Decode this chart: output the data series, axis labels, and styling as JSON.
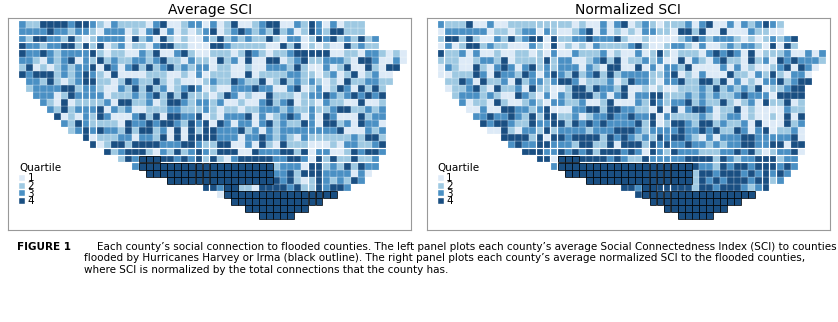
{
  "title_left": "Average SCI",
  "title_right": "Normalized SCI",
  "legend_title": "Quartile",
  "legend_labels": [
    "1",
    "2",
    "3",
    "4"
  ],
  "quartile_colors": [
    "#ddeaf7",
    "#9ec9e2",
    "#4a90c4",
    "#1a4f82"
  ],
  "background_color": "#ffffff",
  "border_color": "#999999",
  "caption_bold": "FIGURE 1",
  "caption_text": "    Each county’s social connection to flooded counties. The left panel plots each county’s average Social Connectedness Index (SCI) to counties flooded by Hurricanes Harvey or Irma (black outline). The right panel plots each county’s average normalized SCI to the flooded counties, where SCI is normalized by the total connections that the county has.",
  "title_fontsize": 10,
  "caption_fontsize": 7.5,
  "legend_fontsize": 7.5
}
